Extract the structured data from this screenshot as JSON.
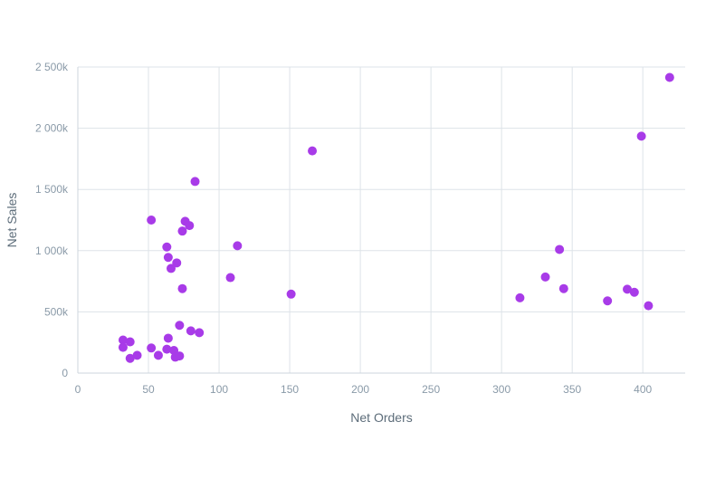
{
  "chart_data": {
    "type": "scatter",
    "title": "",
    "xlabel": "Net Orders",
    "ylabel": "Net Sales",
    "xlim": [
      0,
      430
    ],
    "ylim": [
      0,
      2500000
    ],
    "x_ticks": [
      0,
      50,
      100,
      150,
      200,
      250,
      300,
      350,
      400
    ],
    "x_tick_labels": [
      "0",
      "50",
      "100",
      "150",
      "200",
      "250",
      "300",
      "350",
      "400"
    ],
    "y_ticks": [
      0,
      500000,
      1000000,
      1500000,
      2000000,
      2500000
    ],
    "y_tick_labels": [
      "0",
      "500k",
      "1 000k",
      "1 500k",
      "2 000k",
      "2 500k"
    ],
    "grid": true,
    "legend": "none",
    "series": [
      {
        "color": "#a83be8",
        "points": [
          {
            "x": 32,
            "y": 270000
          },
          {
            "x": 32,
            "y": 210000
          },
          {
            "x": 37,
            "y": 255000
          },
          {
            "x": 37,
            "y": 120000
          },
          {
            "x": 42,
            "y": 145000
          },
          {
            "x": 52,
            "y": 205000
          },
          {
            "x": 52,
            "y": 1250000
          },
          {
            "x": 57,
            "y": 145000
          },
          {
            "x": 63,
            "y": 195000
          },
          {
            "x": 63,
            "y": 1030000
          },
          {
            "x": 64,
            "y": 945000
          },
          {
            "x": 64,
            "y": 285000
          },
          {
            "x": 66,
            "y": 855000
          },
          {
            "x": 68,
            "y": 185000
          },
          {
            "x": 69,
            "y": 130000
          },
          {
            "x": 70,
            "y": 900000
          },
          {
            "x": 72,
            "y": 140000
          },
          {
            "x": 72,
            "y": 390000
          },
          {
            "x": 74,
            "y": 1160000
          },
          {
            "x": 74,
            "y": 690000
          },
          {
            "x": 76,
            "y": 1240000
          },
          {
            "x": 79,
            "y": 1205000
          },
          {
            "x": 80,
            "y": 345000
          },
          {
            "x": 83,
            "y": 1565000
          },
          {
            "x": 86,
            "y": 330000
          },
          {
            "x": 108,
            "y": 780000
          },
          {
            "x": 113,
            "y": 1040000
          },
          {
            "x": 151,
            "y": 645000
          },
          {
            "x": 166,
            "y": 1815000
          },
          {
            "x": 313,
            "y": 615000
          },
          {
            "x": 331,
            "y": 785000
          },
          {
            "x": 341,
            "y": 1010000
          },
          {
            "x": 344,
            "y": 690000
          },
          {
            "x": 375,
            "y": 590000
          },
          {
            "x": 389,
            "y": 685000
          },
          {
            "x": 394,
            "y": 660000
          },
          {
            "x": 399,
            "y": 1935000
          },
          {
            "x": 404,
            "y": 550000
          },
          {
            "x": 419,
            "y": 2415000
          }
        ]
      }
    ]
  }
}
